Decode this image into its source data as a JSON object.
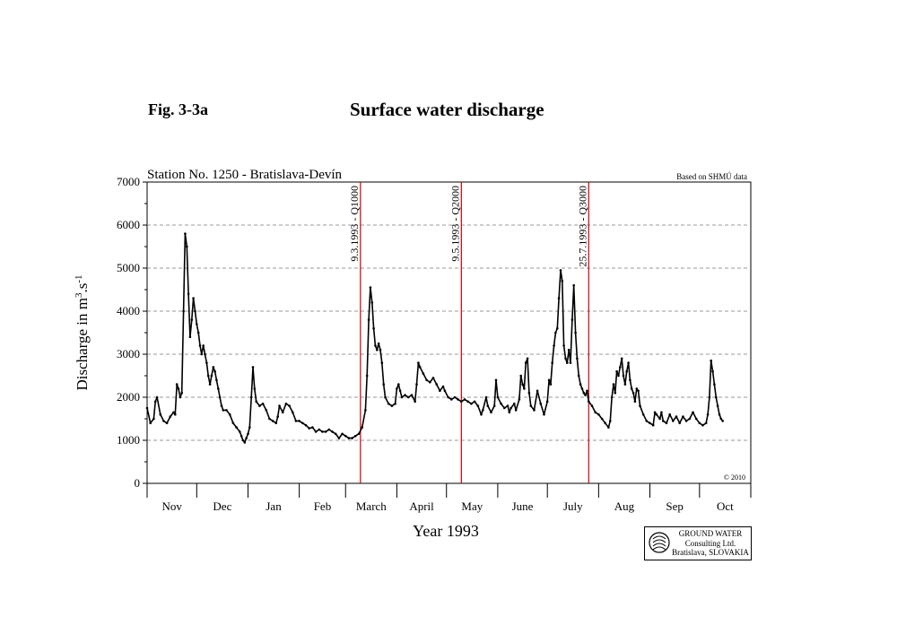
{
  "figure": {
    "label": "Fig. 3-3a",
    "title": "Surface water discharge"
  },
  "logo": {
    "line1": "GROUND WATER",
    "line2": "Consulting Ltd.",
    "line3": "Bratislava, SLOVAKIA"
  },
  "colors": {
    "series": "#000000",
    "event_lines": "#cc0000",
    "grid": "#777777"
  },
  "chart_data": {
    "type": "line",
    "title": "Station No. 1250 - Bratislava-Devín",
    "source_note": "Based on SHMÚ data",
    "copyright": "© 2010",
    "xlabel": "Year 1993",
    "ylabel_base": "Discharge in m",
    "ylabel_sup1": "3",
    "ylabel_mid": ".s",
    "ylabel_sup2": "-1",
    "ylim": [
      0,
      7000
    ],
    "yticks": [
      0,
      1000,
      2000,
      3000,
      4000,
      5000,
      6000,
      7000
    ],
    "grid": "horizontal dashed",
    "months": [
      "Nov",
      "Dec",
      "Jan",
      "Feb",
      "March",
      "April",
      "May",
      "June",
      "July",
      "Aug",
      "Sep",
      "Oct"
    ],
    "xlim_days": [
      0,
      365
    ],
    "events": [
      {
        "day": 129,
        "label": "9.3.1993 - Q1000"
      },
      {
        "day": 190,
        "label": "9.5.1993 - Q2000"
      },
      {
        "day": 267,
        "label": "25.7.1993 - Q3000"
      }
    ],
    "series": [
      {
        "values": [
          [
            0,
            1750
          ],
          [
            2,
            1400
          ],
          [
            4,
            1500
          ],
          [
            5,
            1900
          ],
          [
            6,
            2000
          ],
          [
            8,
            1600
          ],
          [
            10,
            1450
          ],
          [
            12,
            1400
          ],
          [
            14,
            1550
          ],
          [
            16,
            1650
          ],
          [
            17,
            1600
          ],
          [
            18,
            2300
          ],
          [
            19,
            2200
          ],
          [
            20,
            2000
          ],
          [
            21,
            2100
          ],
          [
            22,
            4000
          ],
          [
            23,
            5800
          ],
          [
            24,
            5500
          ],
          [
            25,
            4400
          ],
          [
            26,
            3400
          ],
          [
            27,
            3800
          ],
          [
            28,
            4300
          ],
          [
            29,
            4000
          ],
          [
            30,
            3700
          ],
          [
            31,
            3500
          ],
          [
            32,
            3200
          ],
          [
            33,
            3000
          ],
          [
            34,
            3200
          ],
          [
            35,
            3000
          ],
          [
            36,
            2800
          ],
          [
            37,
            2500
          ],
          [
            38,
            2300
          ],
          [
            39,
            2500
          ],
          [
            40,
            2700
          ],
          [
            41,
            2600
          ],
          [
            42,
            2400
          ],
          [
            43,
            2200
          ],
          [
            44,
            2000
          ],
          [
            45,
            1800
          ],
          [
            46,
            1700
          ],
          [
            48,
            1700
          ],
          [
            50,
            1600
          ],
          [
            52,
            1400
          ],
          [
            54,
            1300
          ],
          [
            56,
            1200
          ],
          [
            57,
            1100
          ],
          [
            58,
            1000
          ],
          [
            59,
            950
          ],
          [
            60,
            1050
          ],
          [
            61,
            1150
          ],
          [
            62,
            1300
          ],
          [
            63,
            2000
          ],
          [
            64,
            2700
          ],
          [
            65,
            2200
          ],
          [
            66,
            1900
          ],
          [
            68,
            1800
          ],
          [
            70,
            1850
          ],
          [
            72,
            1700
          ],
          [
            74,
            1500
          ],
          [
            76,
            1450
          ],
          [
            78,
            1400
          ],
          [
            79,
            1550
          ],
          [
            80,
            1800
          ],
          [
            82,
            1650
          ],
          [
            84,
            1850
          ],
          [
            86,
            1800
          ],
          [
            88,
            1650
          ],
          [
            90,
            1450
          ],
          [
            92,
            1450
          ],
          [
            94,
            1400
          ],
          [
            96,
            1350
          ],
          [
            98,
            1280
          ],
          [
            100,
            1300
          ],
          [
            102,
            1200
          ],
          [
            104,
            1250
          ],
          [
            106,
            1200
          ],
          [
            108,
            1200
          ],
          [
            110,
            1250
          ],
          [
            112,
            1200
          ],
          [
            114,
            1150
          ],
          [
            116,
            1050
          ],
          [
            118,
            1150
          ],
          [
            120,
            1100
          ],
          [
            122,
            1050
          ],
          [
            124,
            1050
          ],
          [
            126,
            1100
          ],
          [
            128,
            1150
          ],
          [
            130,
            1300
          ],
          [
            132,
            1700
          ],
          [
            133,
            2500
          ],
          [
            134,
            3800
          ],
          [
            135,
            4550
          ],
          [
            136,
            4200
          ],
          [
            137,
            3600
          ],
          [
            138,
            3200
          ],
          [
            139,
            3100
          ],
          [
            140,
            3250
          ],
          [
            141,
            3100
          ],
          [
            142,
            2800
          ],
          [
            143,
            2300
          ],
          [
            144,
            2000
          ],
          [
            146,
            1850
          ],
          [
            148,
            1800
          ],
          [
            150,
            1850
          ],
          [
            151,
            2200
          ],
          [
            152,
            2300
          ],
          [
            153,
            2150
          ],
          [
            154,
            2000
          ],
          [
            156,
            2050
          ],
          [
            158,
            2000
          ],
          [
            160,
            2050
          ],
          [
            162,
            1900
          ],
          [
            163,
            2300
          ],
          [
            164,
            2800
          ],
          [
            165,
            2700
          ],
          [
            167,
            2550
          ],
          [
            169,
            2400
          ],
          [
            171,
            2350
          ],
          [
            173,
            2450
          ],
          [
            175,
            2300
          ],
          [
            177,
            2150
          ],
          [
            179,
            2250
          ],
          [
            180,
            2150
          ],
          [
            182,
            2000
          ],
          [
            184,
            1950
          ],
          [
            186,
            2000
          ],
          [
            188,
            1950
          ],
          [
            190,
            1900
          ],
          [
            192,
            1950
          ],
          [
            194,
            1900
          ],
          [
            196,
            1850
          ],
          [
            198,
            1900
          ],
          [
            200,
            1800
          ],
          [
            202,
            1600
          ],
          [
            203,
            1700
          ],
          [
            205,
            2000
          ],
          [
            206,
            1800
          ],
          [
            208,
            1650
          ],
          [
            210,
            1800
          ],
          [
            211,
            2400
          ],
          [
            212,
            2000
          ],
          [
            214,
            1850
          ],
          [
            216,
            1750
          ],
          [
            218,
            1800
          ],
          [
            219,
            1650
          ],
          [
            220,
            1750
          ],
          [
            222,
            1850
          ],
          [
            223,
            1700
          ],
          [
            225,
            1950
          ],
          [
            226,
            2500
          ],
          [
            227,
            2300
          ],
          [
            228,
            2200
          ],
          [
            229,
            2800
          ],
          [
            230,
            2900
          ],
          [
            231,
            2100
          ],
          [
            232,
            1800
          ],
          [
            234,
            1700
          ],
          [
            236,
            2150
          ],
          [
            238,
            1850
          ],
          [
            240,
            1600
          ],
          [
            242,
            1900
          ],
          [
            243,
            2400
          ],
          [
            244,
            2300
          ],
          [
            245,
            2800
          ],
          [
            246,
            3200
          ],
          [
            247,
            3500
          ],
          [
            248,
            3600
          ],
          [
            249,
            4300
          ],
          [
            250,
            4950
          ],
          [
            251,
            4700
          ],
          [
            252,
            3200
          ],
          [
            253,
            2900
          ],
          [
            254,
            2800
          ],
          [
            255,
            3100
          ],
          [
            256,
            2800
          ],
          [
            257,
            3800
          ],
          [
            258,
            4600
          ],
          [
            259,
            3500
          ],
          [
            260,
            2900
          ],
          [
            261,
            2500
          ],
          [
            262,
            2300
          ],
          [
            263,
            2200
          ],
          [
            264,
            2100
          ],
          [
            265,
            2050
          ],
          [
            266,
            2150
          ],
          [
            267,
            1900
          ],
          [
            269,
            1800
          ],
          [
            271,
            1650
          ],
          [
            273,
            1600
          ],
          [
            275,
            1500
          ],
          [
            277,
            1400
          ],
          [
            279,
            1300
          ],
          [
            280,
            1450
          ],
          [
            281,
            2000
          ],
          [
            282,
            2300
          ],
          [
            283,
            2100
          ],
          [
            284,
            2600
          ],
          [
            285,
            2500
          ],
          [
            286,
            2700
          ],
          [
            287,
            2900
          ],
          [
            288,
            2500
          ],
          [
            289,
            2300
          ],
          [
            290,
            2600
          ],
          [
            291,
            2800
          ],
          [
            292,
            2400
          ],
          [
            293,
            2200
          ],
          [
            294,
            2100
          ],
          [
            295,
            1900
          ],
          [
            296,
            2200
          ],
          [
            297,
            2150
          ],
          [
            298,
            1800
          ],
          [
            300,
            1600
          ],
          [
            302,
            1450
          ],
          [
            304,
            1400
          ],
          [
            306,
            1350
          ],
          [
            307,
            1650
          ],
          [
            308,
            1600
          ],
          [
            310,
            1500
          ],
          [
            311,
            1650
          ],
          [
            312,
            1450
          ],
          [
            314,
            1400
          ],
          [
            316,
            1600
          ],
          [
            318,
            1450
          ],
          [
            320,
            1550
          ],
          [
            322,
            1400
          ],
          [
            324,
            1550
          ],
          [
            326,
            1450
          ],
          [
            328,
            1500
          ],
          [
            330,
            1650
          ],
          [
            332,
            1500
          ],
          [
            334,
            1400
          ],
          [
            336,
            1350
          ],
          [
            338,
            1400
          ],
          [
            339,
            1600
          ],
          [
            340,
            2000
          ],
          [
            341,
            2850
          ],
          [
            342,
            2600
          ],
          [
            343,
            2300
          ],
          [
            344,
            2000
          ],
          [
            345,
            1800
          ],
          [
            346,
            1600
          ],
          [
            347,
            1500
          ],
          [
            348,
            1450
          ]
        ]
      }
    ]
  }
}
